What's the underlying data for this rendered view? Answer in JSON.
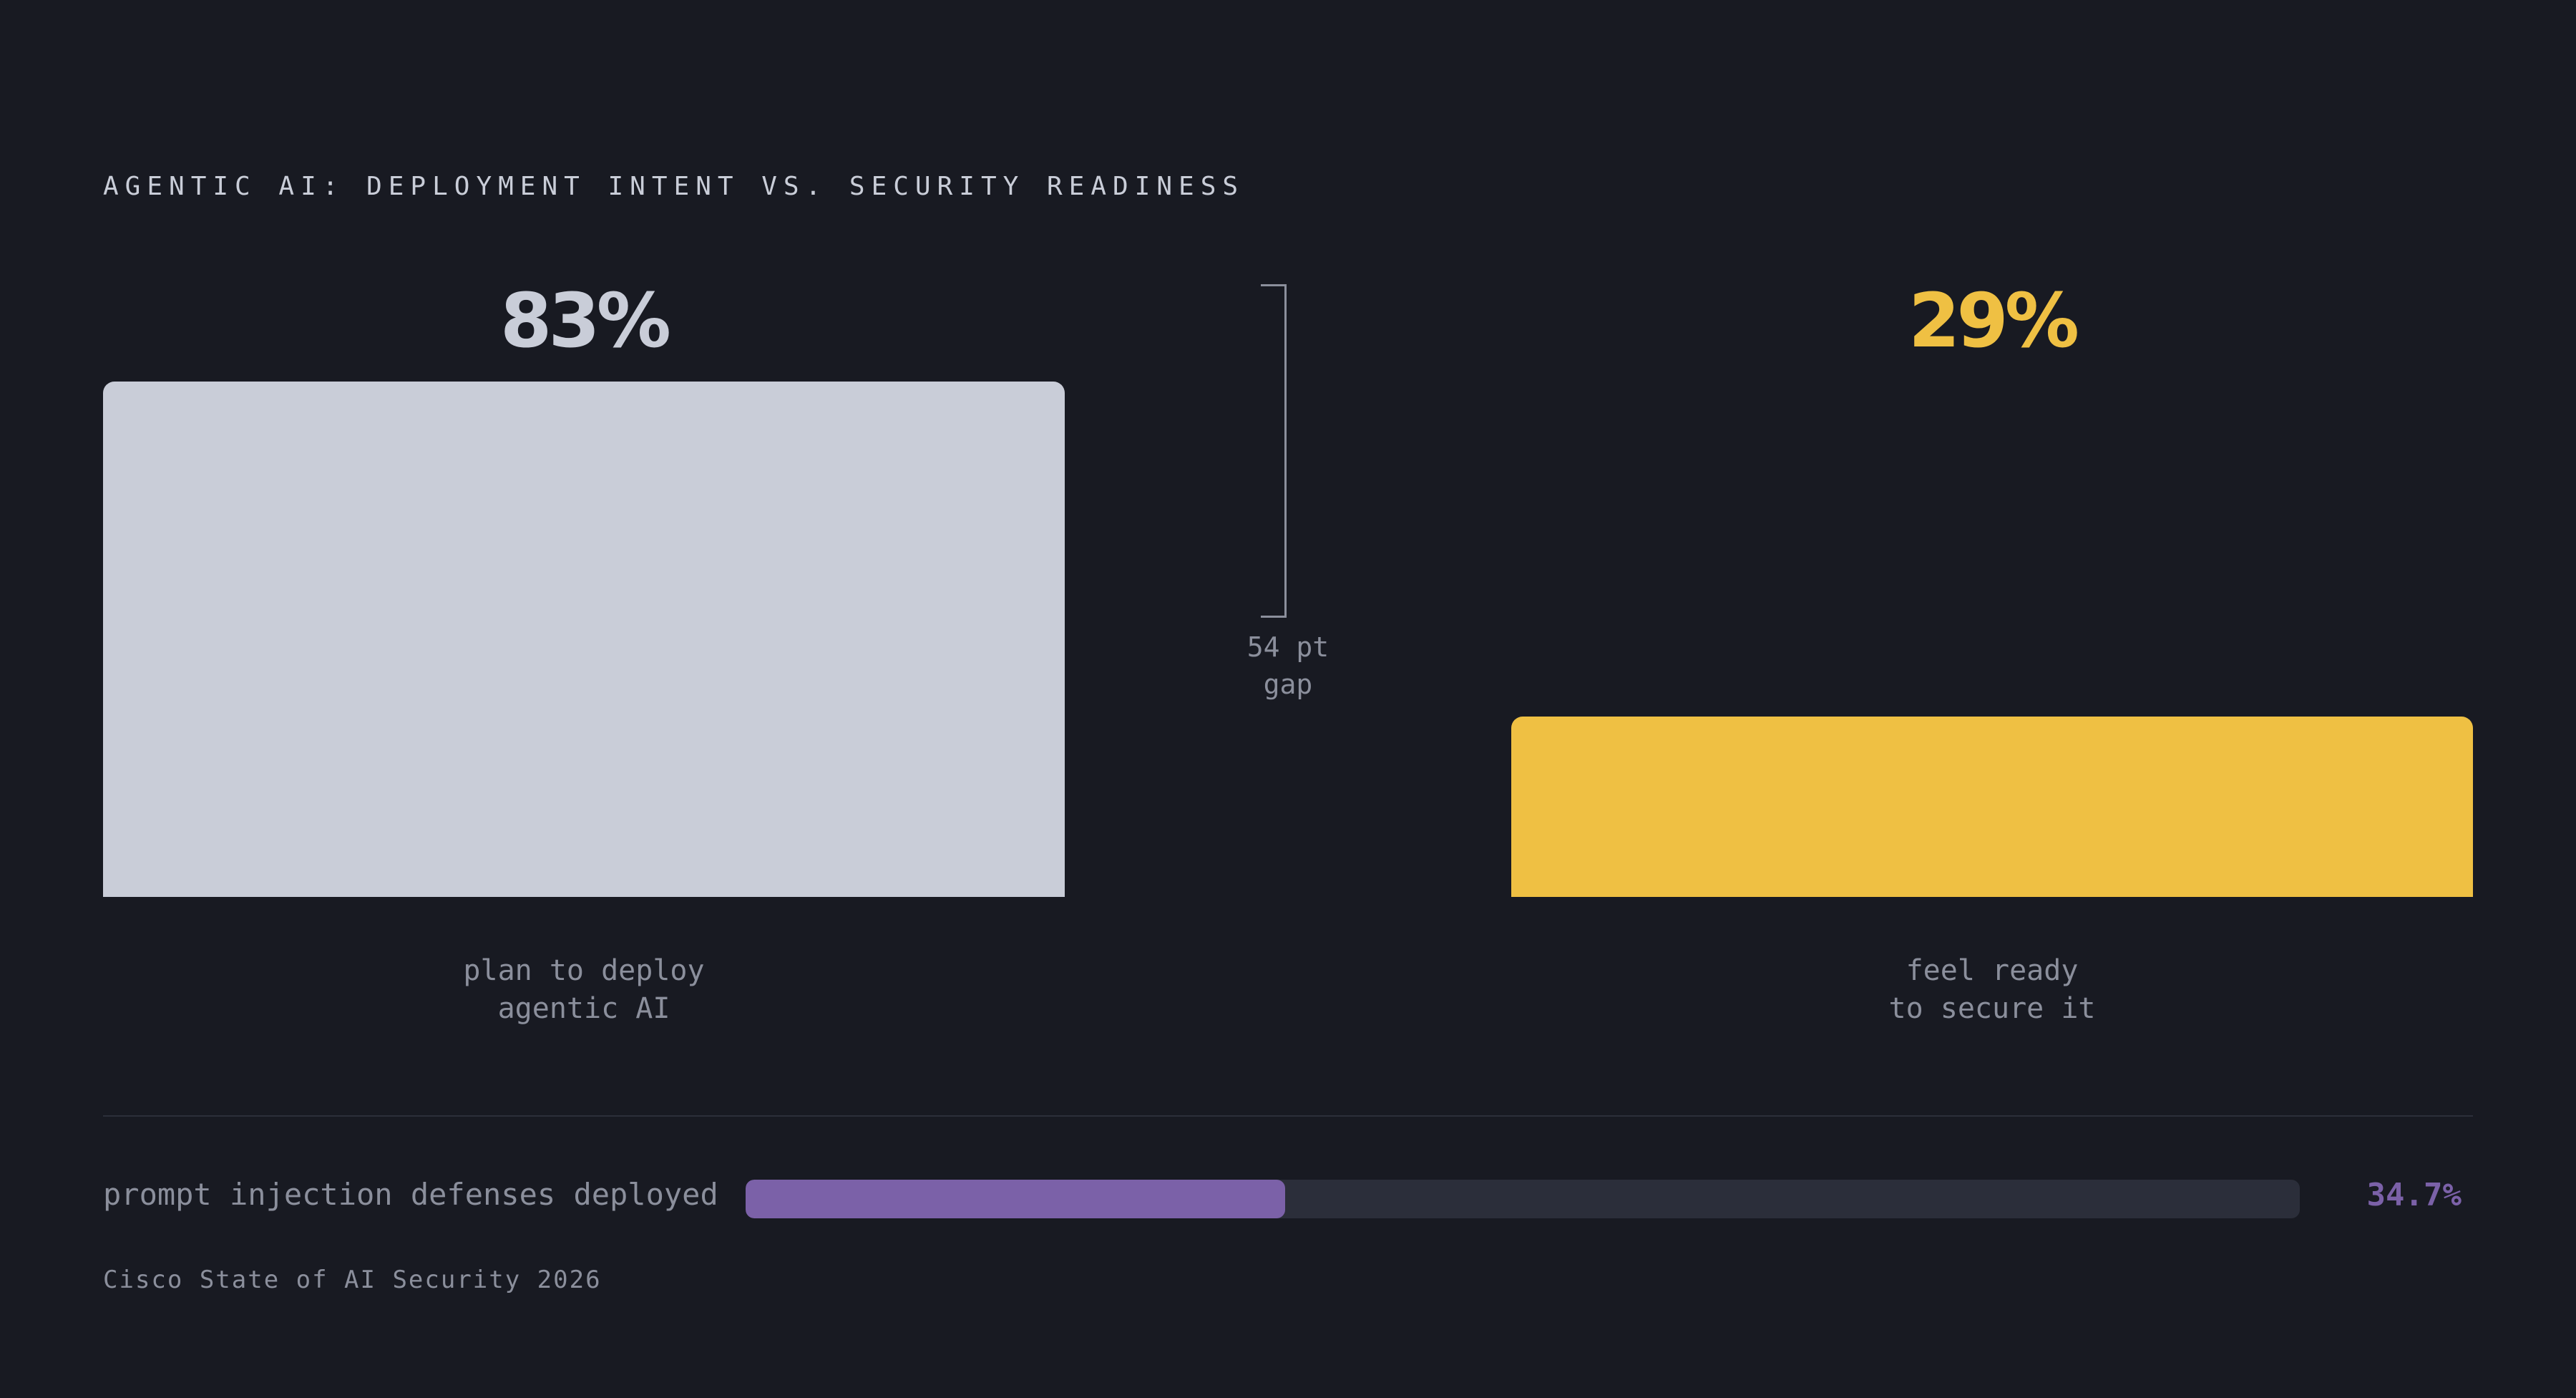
{
  "title": "AGENTIC AI: DEPLOYMENT INTENT VS. SECURITY READINESS",
  "chart_data": {
    "type": "bar",
    "title": "AGENTIC AI: DEPLOYMENT INTENT VS. SECURITY READINESS",
    "categories": [
      "plan to deploy agentic AI",
      "feel ready to secure it"
    ],
    "values": [
      83,
      29
    ],
    "value_labels": [
      "83%",
      "29%"
    ],
    "label_lines": [
      [
        "plan to deploy",
        "agentic AI"
      ],
      [
        "feel ready",
        "to secure it"
      ]
    ],
    "colors": [
      "#c9cdd8",
      "#efc043"
    ],
    "ylim": [
      0,
      100
    ],
    "annotation": {
      "lines": [
        "54 pt",
        "gap"
      ],
      "between": [
        83,
        29
      ]
    },
    "grid": false
  },
  "metric": {
    "label": "prompt injection defenses deployed",
    "value": 34.7,
    "value_text": "34.7%",
    "color": "#7b61a8"
  },
  "source": "Cisco State of AI Security 2026"
}
